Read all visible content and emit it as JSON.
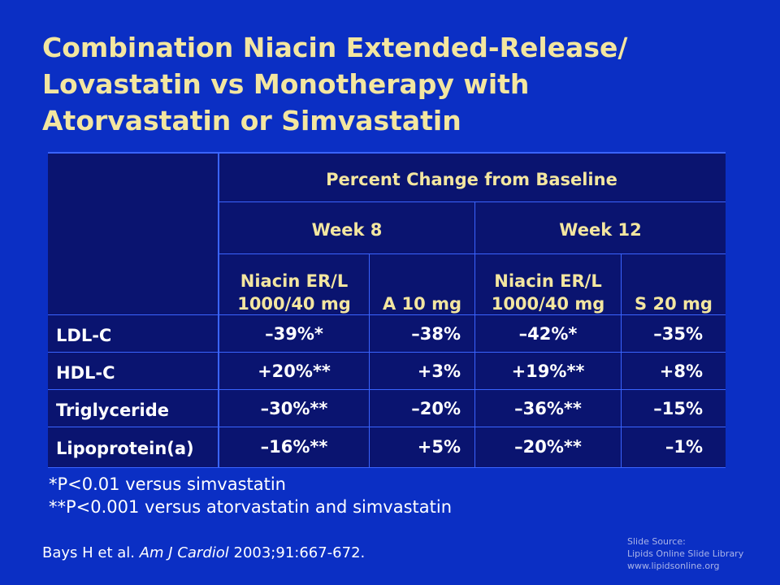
{
  "title": {
    "line1": "Combination Niacin Extended-Release/",
    "line2": "Lovastatin vs Monotherapy with",
    "line3": "Atorvastatin or Simvastatin"
  },
  "table": {
    "header_main": "Percent Change from Baseline",
    "week_8": "Week 8",
    "week_12": "Week 12",
    "col1_line1": "Niacin ER/L",
    "col1_line2": "1000/40 mg",
    "col2": "A 10 mg",
    "col3_line1": "Niacin ER/L",
    "col3_line2": "1000/40 mg",
    "col4": "S 20 mg",
    "rows": [
      {
        "label": "LDL-C",
        "c1": "–39%*",
        "c2": "–38%",
        "c3": "–42%*",
        "c4": "–35%"
      },
      {
        "label": "HDL-C",
        "c1": "+20%**",
        "c2": "+3%",
        "c3": "+19%**",
        "c4": "+8%"
      },
      {
        "label": "Triglyceride",
        "c1": "–30%**",
        "c2": "–20%",
        "c3": "–36%**",
        "c4": "–15%"
      },
      {
        "label": "Lipoprotein(a)",
        "c1": "–16%**",
        "c2": "+5%",
        "c3": "–20%**",
        "c4": "–1%"
      }
    ]
  },
  "footnotes": {
    "f1": "*P<0.01 versus simvastatin",
    "f2": "**P<0.001 versus atorvastatin and simvastatin"
  },
  "citation": {
    "authors": "Bays H et al. ",
    "journal": "Am J Cardiol",
    "details": " 2003;91:667-672."
  },
  "source": {
    "line1": "Slide Source:",
    "line2": "Lipids Online Slide Library",
    "line3": "www.lipidsonline.org"
  }
}
